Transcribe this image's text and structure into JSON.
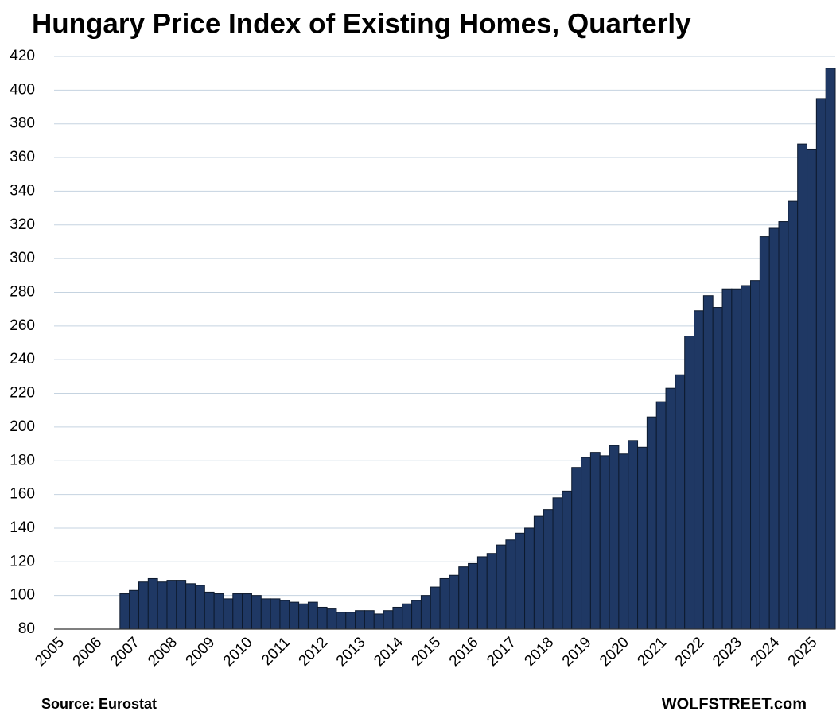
{
  "chart_data": {
    "type": "bar",
    "title": "Hungary Price Index of Existing Homes, Quarterly",
    "source": "Source: Eurostat",
    "credit": "WOLFSTREET.com",
    "color": "#1f3864",
    "grid": true,
    "ylim": [
      80,
      420
    ],
    "yticks": [
      80,
      100,
      120,
      140,
      160,
      180,
      200,
      220,
      240,
      260,
      280,
      300,
      320,
      340,
      360,
      380,
      400,
      420
    ],
    "categories": [
      "2005",
      null,
      null,
      null,
      "2006",
      null,
      null,
      null,
      "2007",
      null,
      null,
      null,
      "2008",
      null,
      null,
      null,
      "2009",
      null,
      null,
      null,
      "2010",
      null,
      null,
      null,
      "2011",
      null,
      null,
      null,
      "2012",
      null,
      null,
      null,
      "2013",
      null,
      null,
      null,
      "2014",
      null,
      null,
      null,
      "2015",
      null,
      null,
      null,
      "2016",
      null,
      null,
      null,
      "2017",
      null,
      null,
      null,
      "2018",
      null,
      null,
      null,
      "2019",
      null,
      null,
      null,
      "2020",
      null,
      null,
      null,
      "2021",
      null,
      null,
      null,
      "2022",
      null,
      null,
      null,
      "2023",
      null,
      null,
      null,
      "2024",
      null,
      null,
      null,
      "2025",
      null,
      null
    ],
    "values": [
      null,
      null,
      null,
      null,
      null,
      null,
      null,
      101,
      103,
      108,
      110,
      108,
      109,
      109,
      107,
      106,
      102,
      101,
      98,
      101,
      101,
      100,
      98,
      98,
      97,
      96,
      95,
      96,
      93,
      92,
      90,
      90,
      91,
      91,
      89,
      91,
      93,
      95,
      97,
      100,
      105,
      110,
      112,
      117,
      119,
      123,
      125,
      130,
      133,
      137,
      140,
      147,
      151,
      158,
      162,
      176,
      182,
      185,
      183,
      189,
      184,
      192,
      188,
      206,
      215,
      223,
      231,
      254,
      269,
      278,
      271,
      282,
      282,
      284,
      287,
      313,
      318,
      322,
      334,
      368,
      365,
      395,
      413
    ]
  }
}
